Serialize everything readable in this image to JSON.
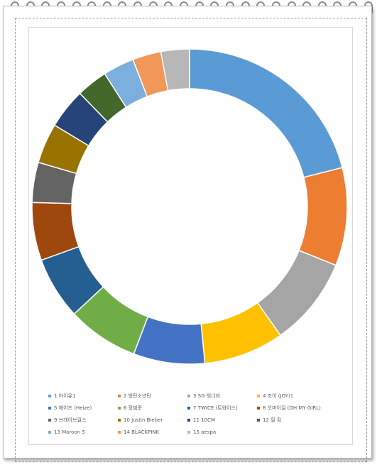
{
  "chart_data": {
    "type": "pie",
    "subtype": "donut",
    "categories": [
      "1 아이유1",
      "2 방탄소년단",
      "3 SG 워너비",
      "4 조이 (JOY)1",
      "5 헤이즈 (Heize)",
      "6 장범준",
      "7 TWICE (트와이스)",
      "8 오마이걸 (OH MY GIRL)",
      "9 브레이브걸스",
      "10 Justin Bieber",
      "11 10CM",
      "12 릴 킴",
      "13 Maroon 5",
      "14 BLACKPINK",
      "15 aespa"
    ],
    "values": [
      23.0,
      11.0,
      10.0,
      9.0,
      8.0,
      8.0,
      7.0,
      6.5,
      4.5,
      4.5,
      4.5,
      3.5,
      3.5,
      3.2,
      3.2
    ],
    "colors": [
      "#5b9bd5",
      "#ed7d31",
      "#a5a5a5",
      "#ffc000",
      "#4472c4",
      "#70ad47",
      "#255e91",
      "#9e480e",
      "#636363",
      "#997300",
      "#264478",
      "#43682b",
      "#7cafdd",
      "#f1975a",
      "#b7b7b7"
    ],
    "legend_position": "bottom",
    "start_angle": "top",
    "direction": "clockwise"
  }
}
